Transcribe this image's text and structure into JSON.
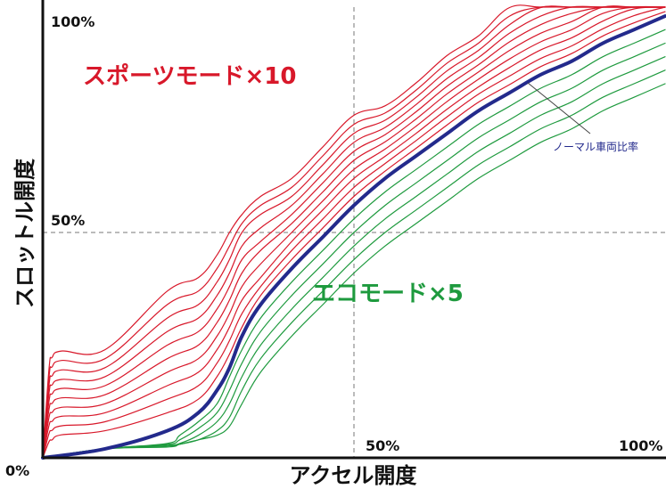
{
  "chart_data": {
    "type": "line",
    "xlabel": "アクセル開度",
    "ylabel": "スロットル開度",
    "x_ticks": [
      "0%",
      "50%",
      "100%"
    ],
    "y_ticks": [
      "50%",
      "100%"
    ],
    "xlim": [
      0,
      100
    ],
    "ylim": [
      0,
      100
    ],
    "grid": "dashed reference lines at 50%",
    "annotations": {
      "sport": "スポーツモード×10",
      "eco": "エコモード×5",
      "normal": "ノーマル車両比率"
    },
    "colors": {
      "sport": "#d8182a",
      "eco": "#1e9a3e",
      "normal": "#232a8c",
      "axis": "#111111",
      "grid": "#777777"
    },
    "series": [
      {
        "group": "normal",
        "x": [
          0,
          10,
          20,
          25,
          28,
          30,
          32,
          35,
          40,
          45,
          50,
          55,
          60,
          65,
          70,
          75,
          80,
          85,
          90,
          95,
          100
        ],
        "y": [
          0,
          2,
          6,
          10,
          15,
          20,
          27,
          34,
          42,
          49,
          56,
          62,
          67,
          72,
          77,
          81,
          85,
          88,
          92,
          95,
          98
        ]
      },
      {
        "group": "sport",
        "x": [
          0,
          1,
          1.5,
          3,
          10,
          20,
          25,
          28,
          30,
          32,
          35,
          40,
          45,
          50,
          55,
          60,
          65,
          70,
          75,
          80,
          85,
          90,
          95,
          100
        ],
        "y": [
          0,
          3.6,
          4.0,
          5.1,
          6,
          10,
          13,
          18,
          23,
          29,
          36,
          44,
          51,
          58,
          63.6,
          68.7,
          73.9,
          78.9,
          82.8,
          86.8,
          89.7,
          93.6,
          96.5,
          99.0
        ]
      },
      {
        "group": "sport",
        "x": [
          0,
          1,
          1.5,
          3,
          10,
          20,
          25,
          28,
          30,
          32,
          35,
          40,
          45,
          50,
          55,
          60,
          65,
          70,
          75,
          80,
          85,
          90,
          95,
          100
        ],
        "y": [
          0,
          5.4,
          6.1,
          7.1,
          8,
          13,
          16,
          21,
          26,
          32,
          38,
          46,
          53,
          60,
          65.3,
          70.4,
          75.7,
          80.7,
          84.7,
          88.6,
          91.4,
          95.2,
          98.1,
          100
        ]
      },
      {
        "group": "sport",
        "x": [
          0,
          1,
          1.5,
          3,
          10,
          20,
          25,
          28,
          30,
          32,
          35,
          40,
          45,
          50,
          55,
          60,
          65,
          70,
          75,
          80,
          85,
          90,
          95,
          100
        ],
        "y": [
          0,
          7.2,
          8.1,
          9.2,
          10,
          16,
          19,
          24,
          29,
          35,
          40,
          48,
          55,
          62,
          66.9,
          72.0,
          77.4,
          82.3,
          86.6,
          90.5,
          93.2,
          96.9,
          99.6,
          100
        ]
      },
      {
        "group": "sport",
        "x": [
          0,
          1,
          1.5,
          3,
          10,
          20,
          25,
          28,
          30,
          32,
          35,
          40,
          45,
          50,
          55,
          60,
          65,
          70,
          75,
          80,
          85,
          90,
          95,
          100
        ],
        "y": [
          0,
          9.0,
          10.1,
          11.2,
          12,
          19,
          22,
          27,
          32,
          38,
          43,
          50,
          57,
          64,
          68.5,
          73.6,
          79.1,
          84.0,
          88.5,
          92.3,
          95.0,
          98.6,
          100,
          100
        ]
      },
      {
        "group": "sport",
        "x": [
          0,
          1,
          1.5,
          3,
          10,
          20,
          25,
          28,
          30,
          32,
          35,
          40,
          45,
          50,
          55,
          60,
          65,
          70,
          75,
          80,
          85,
          90,
          95,
          100
        ],
        "y": [
          0,
          10.8,
          12.1,
          13.3,
          14,
          22,
          25,
          30,
          35,
          41,
          46,
          52,
          59,
          66,
          70.1,
          75.2,
          80.8,
          85.6,
          90.4,
          94.2,
          96.8,
          100,
          100,
          100
        ]
      },
      {
        "group": "sport",
        "x": [
          0,
          1,
          1.5,
          3,
          10,
          20,
          25,
          28,
          30,
          32,
          35,
          40,
          45,
          50,
          55,
          60,
          65,
          70,
          75,
          80,
          85,
          90,
          95,
          100
        ],
        "y": [
          0,
          12.6,
          14.2,
          15.4,
          16,
          25,
          28,
          33,
          38,
          44,
          48,
          54,
          61,
          68,
          71.7,
          76.8,
          82.5,
          87.2,
          92.3,
          96.1,
          98.6,
          100,
          100,
          100
        ]
      },
      {
        "group": "sport",
        "x": [
          0,
          1,
          1.5,
          3,
          10,
          20,
          25,
          28,
          30,
          32,
          35,
          40,
          45,
          50,
          55,
          60,
          65,
          70,
          75,
          80,
          85,
          90,
          95,
          100
        ],
        "y": [
          0,
          14.4,
          16.2,
          17.4,
          18,
          28,
          31,
          36,
          41,
          47,
          51,
          56,
          63,
          70,
          73.3,
          78.4,
          84.2,
          88.8,
          94.2,
          98.0,
          100,
          100,
          100,
          100
        ]
      },
      {
        "group": "sport",
        "x": [
          0,
          1,
          1.5,
          3,
          10,
          20,
          25,
          28,
          30,
          32,
          35,
          40,
          45,
          50,
          55,
          60,
          65,
          70,
          75,
          80,
          85,
          90,
          95,
          100
        ],
        "y": [
          0,
          16.2,
          18.2,
          19.5,
          20,
          31,
          34,
          39,
          44,
          50,
          54,
          58,
          65,
          72,
          74.9,
          80.0,
          85.9,
          90.4,
          96.1,
          99.9,
          100,
          100,
          100,
          100
        ]
      },
      {
        "group": "sport",
        "x": [
          0,
          1,
          1.5,
          3,
          10,
          20,
          25,
          28,
          30,
          32,
          35,
          40,
          45,
          50,
          55,
          60,
          65,
          70,
          75,
          80,
          85,
          90,
          95,
          100
        ],
        "y": [
          0,
          18.0,
          20.2,
          21.6,
          22,
          34,
          37,
          42,
          47,
          52,
          56,
          60,
          67,
          74,
          76.5,
          81.6,
          87.6,
          92.0,
          98.0,
          100,
          100,
          100,
          100,
          100
        ]
      },
      {
        "group": "sport",
        "x": [
          0,
          1,
          1.5,
          3,
          10,
          20,
          25,
          28,
          30,
          32,
          35,
          40,
          45,
          50,
          55,
          60,
          65,
          70,
          75,
          80,
          85,
          90,
          95,
          100
        ],
        "y": [
          0,
          19.8,
          22.3,
          23.7,
          24,
          37,
          40,
          45,
          50,
          54,
          58,
          62,
          69,
          76,
          78.1,
          83.2,
          89.3,
          93.6,
          99.9,
          100,
          100,
          100,
          100,
          100
        ]
      },
      {
        "group": "eco",
        "x": [
          0,
          10,
          20,
          22,
          25,
          28,
          30,
          32,
          35,
          40,
          45,
          50,
          55,
          60,
          65,
          70,
          75,
          80,
          85,
          90,
          95,
          100
        ],
        "y": [
          0,
          2,
          3.2,
          5,
          8,
          12,
          18,
          24,
          31,
          39,
          46,
          53,
          59,
          64,
          69,
          74,
          78,
          82,
          85,
          89,
          92,
          95
        ]
      },
      {
        "group": "eco",
        "x": [
          0,
          10,
          20,
          22,
          25,
          28,
          30,
          32,
          35,
          40,
          45,
          50,
          55,
          60,
          65,
          70,
          75,
          80,
          85,
          90,
          95,
          100
        ],
        "y": [
          0,
          2,
          3.0,
          4,
          6.5,
          10,
          15,
          21,
          28,
          36,
          43,
          50,
          56,
          61,
          66,
          71,
          75,
          79,
          82,
          86,
          89,
          92
        ]
      },
      {
        "group": "eco",
        "x": [
          0,
          10,
          20,
          22,
          25,
          28,
          30,
          32,
          35,
          40,
          45,
          50,
          55,
          60,
          65,
          70,
          75,
          80,
          85,
          90,
          95,
          100
        ],
        "y": [
          0,
          2,
          2.8,
          3.2,
          5,
          8,
          12,
          18,
          25,
          33,
          40,
          47,
          53,
          58,
          63,
          68,
          72,
          76,
          79,
          83,
          86,
          89
        ]
      },
      {
        "group": "eco",
        "x": [
          0,
          10,
          20,
          22,
          25,
          28,
          30,
          32,
          35,
          40,
          45,
          50,
          55,
          60,
          65,
          70,
          75,
          80,
          85,
          90,
          95,
          100
        ],
        "y": [
          0,
          2,
          2.6,
          3,
          4,
          6,
          9,
          15,
          22,
          30,
          37,
          44,
          50,
          55,
          60,
          65,
          69,
          73,
          76,
          80,
          83,
          86
        ]
      },
      {
        "group": "eco",
        "x": [
          0,
          10,
          20,
          22,
          25,
          28,
          30,
          32,
          35,
          40,
          45,
          50,
          55,
          60,
          65,
          70,
          75,
          80,
          85,
          90,
          95,
          100
        ],
        "y": [
          0,
          2,
          2.4,
          3,
          4,
          5,
          7,
          12,
          19,
          27,
          34,
          41,
          47,
          52,
          57,
          62,
          66,
          70,
          73,
          77,
          80,
          83
        ]
      }
    ]
  }
}
